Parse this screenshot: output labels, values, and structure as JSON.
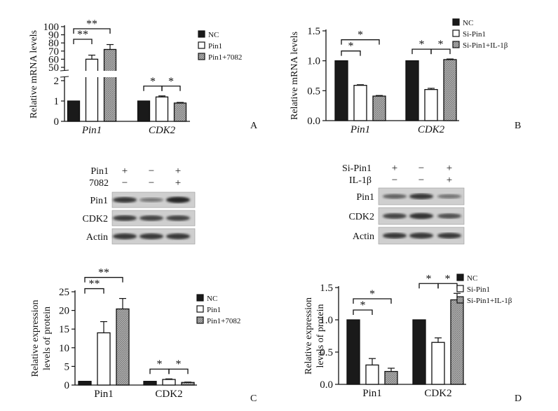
{
  "colors": {
    "black": "#1a1a1a",
    "white": "#ffffff",
    "hatch": "#a8a8a8",
    "axis": "#111111",
    "band": "#1c1c1c"
  },
  "legend_A_C": [
    "NC",
    "Pin1",
    "Pin1+7082"
  ],
  "legend_B_D": [
    "NC",
    "Si-Pin1",
    "Si-Pin1+IL-1β"
  ],
  "chart_data": [
    {
      "panel": "A",
      "type": "bar",
      "ylabel": "Relative mRNA levels",
      "categories": [
        "Pin1",
        "CDK2"
      ],
      "italic_categories": true,
      "axis_break": true,
      "ticks_lower": [
        "0",
        "1",
        "2"
      ],
      "ticks_upper": [
        "50",
        "60",
        "70",
        "80",
        "90",
        "100"
      ],
      "series": [
        {
          "name": "NC",
          "values": [
            1,
            1
          ],
          "errors": [
            0,
            0
          ]
        },
        {
          "name": "Pin1",
          "values": [
            60,
            1.2
          ],
          "errors": [
            5,
            0.05
          ]
        },
        {
          "name": "Pin1+7082",
          "values": [
            72,
            0.9
          ],
          "errors": [
            6,
            0.03
          ]
        }
      ],
      "significance": [
        {
          "category": "Pin1",
          "pairs": [
            [
              "NC",
              "Pin1"
            ],
            [
              "NC",
              "Pin1+7082"
            ]
          ],
          "labels": [
            "**",
            "**"
          ]
        },
        {
          "category": "CDK2",
          "pairs": [
            [
              "NC",
              "Pin1"
            ],
            [
              "Pin1",
              "Pin1+7082"
            ]
          ],
          "labels": [
            "*",
            "*"
          ]
        }
      ]
    },
    {
      "panel": "B",
      "type": "bar",
      "ylabel": "Relative mRNA levels",
      "categories": [
        "Pin1",
        "CDK2"
      ],
      "italic_categories": true,
      "ylim": [
        0,
        1.5
      ],
      "ticks": [
        "0.0",
        "0.5",
        "1.0",
        "1.5"
      ],
      "series": [
        {
          "name": "NC",
          "values": [
            1.0,
            1.0
          ],
          "errors": [
            0,
            0
          ]
        },
        {
          "name": "Si-Pin1",
          "values": [
            0.59,
            0.52
          ],
          "errors": [
            0.01,
            0.02
          ]
        },
        {
          "name": "Si-Pin1+IL-1β",
          "values": [
            0.41,
            1.02
          ],
          "errors": [
            0.01,
            0.01
          ]
        }
      ],
      "significance": [
        {
          "category": "Pin1",
          "pairs": [
            [
              "NC",
              "Si-Pin1"
            ],
            [
              "NC",
              "Si-Pin1+IL-1β"
            ]
          ],
          "labels": [
            "*",
            "*"
          ]
        },
        {
          "category": "CDK2",
          "pairs": [
            [
              "NC",
              "Si-Pin1"
            ],
            [
              "Si-Pin1",
              "Si-Pin1+IL-1β"
            ]
          ],
          "labels": [
            "*",
            "*"
          ]
        }
      ]
    },
    {
      "panel": "C",
      "type": "bar",
      "ylabel": [
        "Relative expression",
        "levels of protein"
      ],
      "categories": [
        "Pin1",
        "CDK2"
      ],
      "italic_categories": false,
      "ylim": [
        0,
        25
      ],
      "ticks": [
        "0",
        "5",
        "10",
        "15",
        "20",
        "25"
      ],
      "series": [
        {
          "name": "NC",
          "values": [
            1.0,
            1.0
          ],
          "errors": [
            0,
            0
          ]
        },
        {
          "name": "Pin1",
          "values": [
            14,
            1.5
          ],
          "errors": [
            3,
            0.15
          ]
        },
        {
          "name": "Pin1+7082",
          "values": [
            20.4,
            0.7
          ],
          "errors": [
            2.8,
            0.1
          ]
        }
      ],
      "significance": [
        {
          "category": "Pin1",
          "pairs": [
            [
              "NC",
              "Pin1"
            ],
            [
              "NC",
              "Pin1+7082"
            ]
          ],
          "labels": [
            "**",
            "**"
          ]
        },
        {
          "category": "CDK2",
          "pairs": [
            [
              "NC",
              "Pin1"
            ],
            [
              "Pin1",
              "Pin1+7082"
            ]
          ],
          "labels": [
            "*",
            "*"
          ]
        }
      ]
    },
    {
      "panel": "D",
      "type": "bar",
      "ylabel": [
        "Relative expression",
        "levels of protein"
      ],
      "categories": [
        "Pin1",
        "CDK2"
      ],
      "italic_categories": false,
      "ylim": [
        0,
        1.5
      ],
      "ticks": [
        "0.0",
        "0.5",
        "1.0",
        "1.5"
      ],
      "series": [
        {
          "name": "NC",
          "values": [
            1.0,
            1.0
          ],
          "errors": [
            0,
            0
          ]
        },
        {
          "name": "Si-Pin1",
          "values": [
            0.3,
            0.65
          ],
          "errors": [
            0.1,
            0.07
          ]
        },
        {
          "name": "Si-Pin1+IL-1β",
          "values": [
            0.2,
            1.31
          ],
          "errors": [
            0.05,
            0.1
          ]
        }
      ],
      "significance": [
        {
          "category": "Pin1",
          "pairs": [
            [
              "NC",
              "Si-Pin1"
            ],
            [
              "NC",
              "Si-Pin1+IL-1β"
            ]
          ],
          "labels": [
            "*",
            "*"
          ]
        },
        {
          "category": "CDK2",
          "pairs": [
            [
              "NC",
              "Si-Pin1"
            ],
            [
              "Si-Pin1",
              "Si-Pin1+IL-1β"
            ]
          ],
          "labels": [
            "*",
            "*"
          ]
        }
      ]
    }
  ],
  "blots": {
    "left": {
      "rows": [
        {
          "label": "Pin1",
          "signs": [
            "+",
            "−",
            "+"
          ]
        },
        {
          "label": "7082",
          "signs": [
            "−",
            "−",
            "+"
          ]
        }
      ],
      "bands": [
        {
          "label": "Pin1",
          "intensity": [
            0.8,
            0.25,
            1.0
          ]
        },
        {
          "label": "CDK2",
          "intensity": [
            0.75,
            0.7,
            0.7
          ]
        },
        {
          "label": "Actin",
          "intensity": [
            0.85,
            0.85,
            0.85
          ]
        }
      ]
    },
    "right": {
      "rows": [
        {
          "label": "Si-Pin1",
          "signs": [
            "+",
            "−",
            "+"
          ]
        },
        {
          "label": "IL-1β",
          "signs": [
            "−",
            "−",
            "+"
          ]
        }
      ],
      "bands": [
        {
          "label": "Pin1",
          "intensity": [
            0.45,
            0.8,
            0.3
          ]
        },
        {
          "label": "CDK2",
          "intensity": [
            0.7,
            0.9,
            0.6
          ]
        },
        {
          "label": "Actin",
          "intensity": [
            0.8,
            0.85,
            0.8
          ]
        }
      ]
    }
  }
}
